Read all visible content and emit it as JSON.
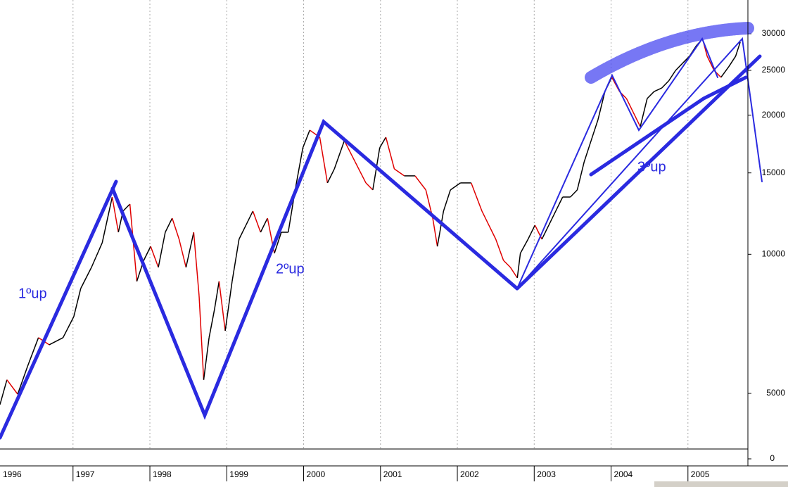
{
  "chart_data": [
    {
      "type": "line",
      "log": true,
      "grid": "x",
      "xlim": [
        1996.05,
        2005.78
      ],
      "xticks": [
        1996,
        1997,
        1998,
        1999,
        2000,
        2001,
        2002,
        2003,
        2004,
        2005
      ],
      "ylim": [
        3790,
        35500
      ],
      "yticks": [
        5000,
        10000,
        15000,
        20000,
        25000,
        30000
      ],
      "annotations": [
        "1ºup",
        "2ºup",
        "3ºup"
      ],
      "series": [
        {
          "color": "#000000",
          "down_color": "#e00000",
          "x": [
            1996.05,
            1996.14,
            1996.28,
            1996.41,
            1996.55,
            1996.69,
            1996.87,
            1997.01,
            1997.1,
            1997.24,
            1997.38,
            1997.47,
            1997.51,
            1997.59,
            1997.65,
            1997.74,
            1997.83,
            1997.92,
            1998.01,
            1998.11,
            1998.2,
            1998.29,
            1998.38,
            1998.47,
            1998.57,
            1998.64,
            1998.7,
            1998.77,
            1998.84,
            1998.9,
            1998.98,
            1999.07,
            1999.16,
            1999.25,
            1999.34,
            1999.44,
            1999.53,
            1999.62,
            1999.71,
            1999.8,
            1999.89,
            1999.99,
            2000.08,
            2000.21,
            2000.31,
            2000.4,
            2000.53,
            2000.67,
            2000.81,
            2000.9,
            2000.99,
            2001.07,
            2001.18,
            2001.31,
            2001.45,
            2001.59,
            2001.68,
            2001.74,
            2001.82,
            2001.91,
            2002.04,
            2002.18,
            2002.32,
            2002.41,
            2002.5,
            2002.6,
            2002.69,
            2002.78,
            2002.82,
            2002.92,
            2003.01,
            2003.1,
            2003.19,
            2003.28,
            2003.37,
            2003.47,
            2003.56,
            2003.65,
            2003.74,
            2003.83,
            2003.92,
            2004.01,
            2004.11,
            2004.2,
            2004.29,
            2004.38,
            2004.47,
            2004.56,
            2004.66,
            2004.75,
            2004.84,
            2004.93,
            2005.02,
            2005.11,
            2005.19,
            2005.25,
            2005.34,
            2005.43,
            2005.53,
            2005.62,
            2005.68
          ],
          "values": [
            4730,
            5350,
            4980,
            5730,
            6600,
            6370,
            6600,
            7330,
            8430,
            9370,
            10590,
            12400,
            13300,
            11160,
            12400,
            12840,
            8740,
            9700,
            10400,
            9370,
            11160,
            11970,
            10780,
            9370,
            11160,
            8140,
            5350,
            6600,
            7590,
            8740,
            6830,
            8740,
            10780,
            11560,
            12400,
            11160,
            11970,
            10050,
            11160,
            11160,
            13780,
            17000,
            18560,
            17920,
            14270,
            15300,
            17610,
            15850,
            14270,
            13780,
            17000,
            17920,
            15300,
            14780,
            14780,
            13780,
            11970,
            10400,
            12400,
            13780,
            14270,
            14270,
            12400,
            11560,
            10780,
            9700,
            9370,
            8890,
            10050,
            10780,
            11560,
            10780,
            11560,
            12400,
            13300,
            13300,
            13780,
            15850,
            17610,
            19560,
            22500,
            24150,
            22500,
            21730,
            20260,
            18890,
            21730,
            22500,
            22900,
            23730,
            25000,
            25900,
            26820,
            28270,
            29280,
            26820,
            25000,
            24150,
            25450,
            26820,
            28770
          ]
        }
      ]
    },
    {
      "type": "panel",
      "yticks": [
        0
      ]
    }
  ]
}
